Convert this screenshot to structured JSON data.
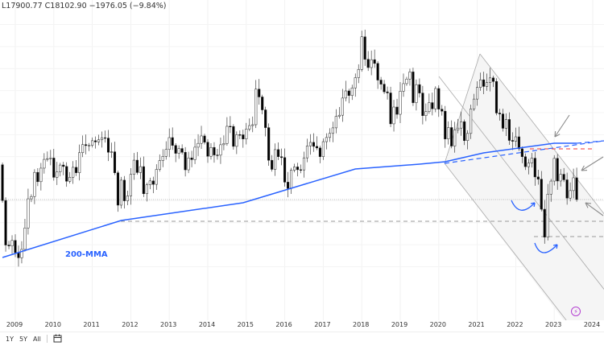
{
  "legend": {
    "low": "L17900.77",
    "close": "C18102.90",
    "change": "−1976.05 (−9.84%)"
  },
  "toolbar": {
    "ranges": [
      "1Y",
      "5Y",
      "All"
    ],
    "calendar_icon": "calendar-goto-icon"
  },
  "chart_data": {
    "type": "candlestick",
    "interval": "monthly",
    "start": "2008-09",
    "first_open": 21261,
    "closes": [
      18016,
      13969,
      13888,
      14387,
      13278,
      12812,
      13576,
      15521,
      18171,
      18379,
      20573,
      19724,
      20955,
      21752,
      21821,
      21873,
      20122,
      20608,
      21239,
      21108,
      19765,
      20129,
      21030,
      20536,
      22358,
      23096,
      23008,
      23035,
      23447,
      23338,
      23528,
      23720,
      23684,
      22398,
      22440,
      20535,
      17592,
      19864,
      17989,
      18434,
      20390,
      21680,
      20556,
      21094,
      18630,
      19441,
      19796,
      19482,
      20840,
      21642,
      22030,
      22657,
      23730,
      23020,
      22300,
      22737,
      22392,
      20803,
      21884,
      21731,
      22860,
      23206,
      23881,
      23306,
      22035,
      22837,
      22151,
      22134,
      23082,
      23190,
      24757,
      24742,
      22933,
      23998,
      23987,
      23605,
      24507,
      24823,
      24901,
      28133,
      27424,
      26250,
      24636,
      21670,
      20846,
      22640,
      21996,
      21914,
      19683,
      19111,
      20777,
      21067,
      20815,
      20794,
      21891,
      22977,
      23297,
      22934,
      22790,
      22001,
      23361,
      23741,
      24112,
      24615,
      25661,
      25765,
      27323,
      27970,
      27554,
      28246,
      29177,
      29919,
      32887,
      30845,
      30093,
      30808,
      30469,
      28955,
      28583,
      27889,
      27789,
      24980,
      26507,
      25846,
      27942,
      28633,
      29051,
      29699,
      26901,
      28543,
      27778,
      25725,
      26092,
      26907,
      26346,
      28190,
      26313,
      26130,
      23603,
      24644,
      22961,
      24427,
      24595,
      25177,
      23459,
      24107,
      26341,
      27231,
      28284,
      28980,
      28378,
      28725,
      29152,
      28828,
      25961,
      25879,
      24576,
      25377,
      23475,
      23398,
      23802,
      22713,
      21997,
      21089,
      21415,
      21860,
      20157,
      19955,
      17223,
      14687,
      18597,
      19781,
      21842,
      19786,
      20400,
      19895,
      18234,
      18916,
      20079,
      18102.9
    ],
    "last_candle_low": 17900.77,
    "moving_average": {
      "label": "200-MMA",
      "color": "#2962ff",
      "points": [
        [
          "2008-09",
          12839
        ],
        [
          "2011-10",
          16201
        ],
        [
          "2014-12",
          17810
        ],
        [
          "2017-11",
          20880
        ],
        [
          "2019-07",
          21318
        ],
        [
          "2020-03",
          21540
        ],
        [
          "2021-03",
          22342
        ],
        [
          "2023-01",
          23219
        ],
        [
          "2023-08",
          23219
        ]
      ]
    },
    "x_ticks": [
      "2009",
      "2010",
      "2011",
      "2012",
      "2013",
      "2014",
      "2015",
      "2016",
      "2017",
      "2018",
      "2019",
      "2020",
      "2021",
      "2022",
      "2023",
      "2024"
    ],
    "price_lines": {
      "last_close": 18102.9,
      "support_2011": 16128,
      "support_2022": 14700,
      "resistance_red": 22720
    },
    "up_color": "#ffffff",
    "down_color": "#000000",
    "annotation_color": "#2962ff",
    "arrow_color": "#8a8a8a",
    "grid": true
  }
}
